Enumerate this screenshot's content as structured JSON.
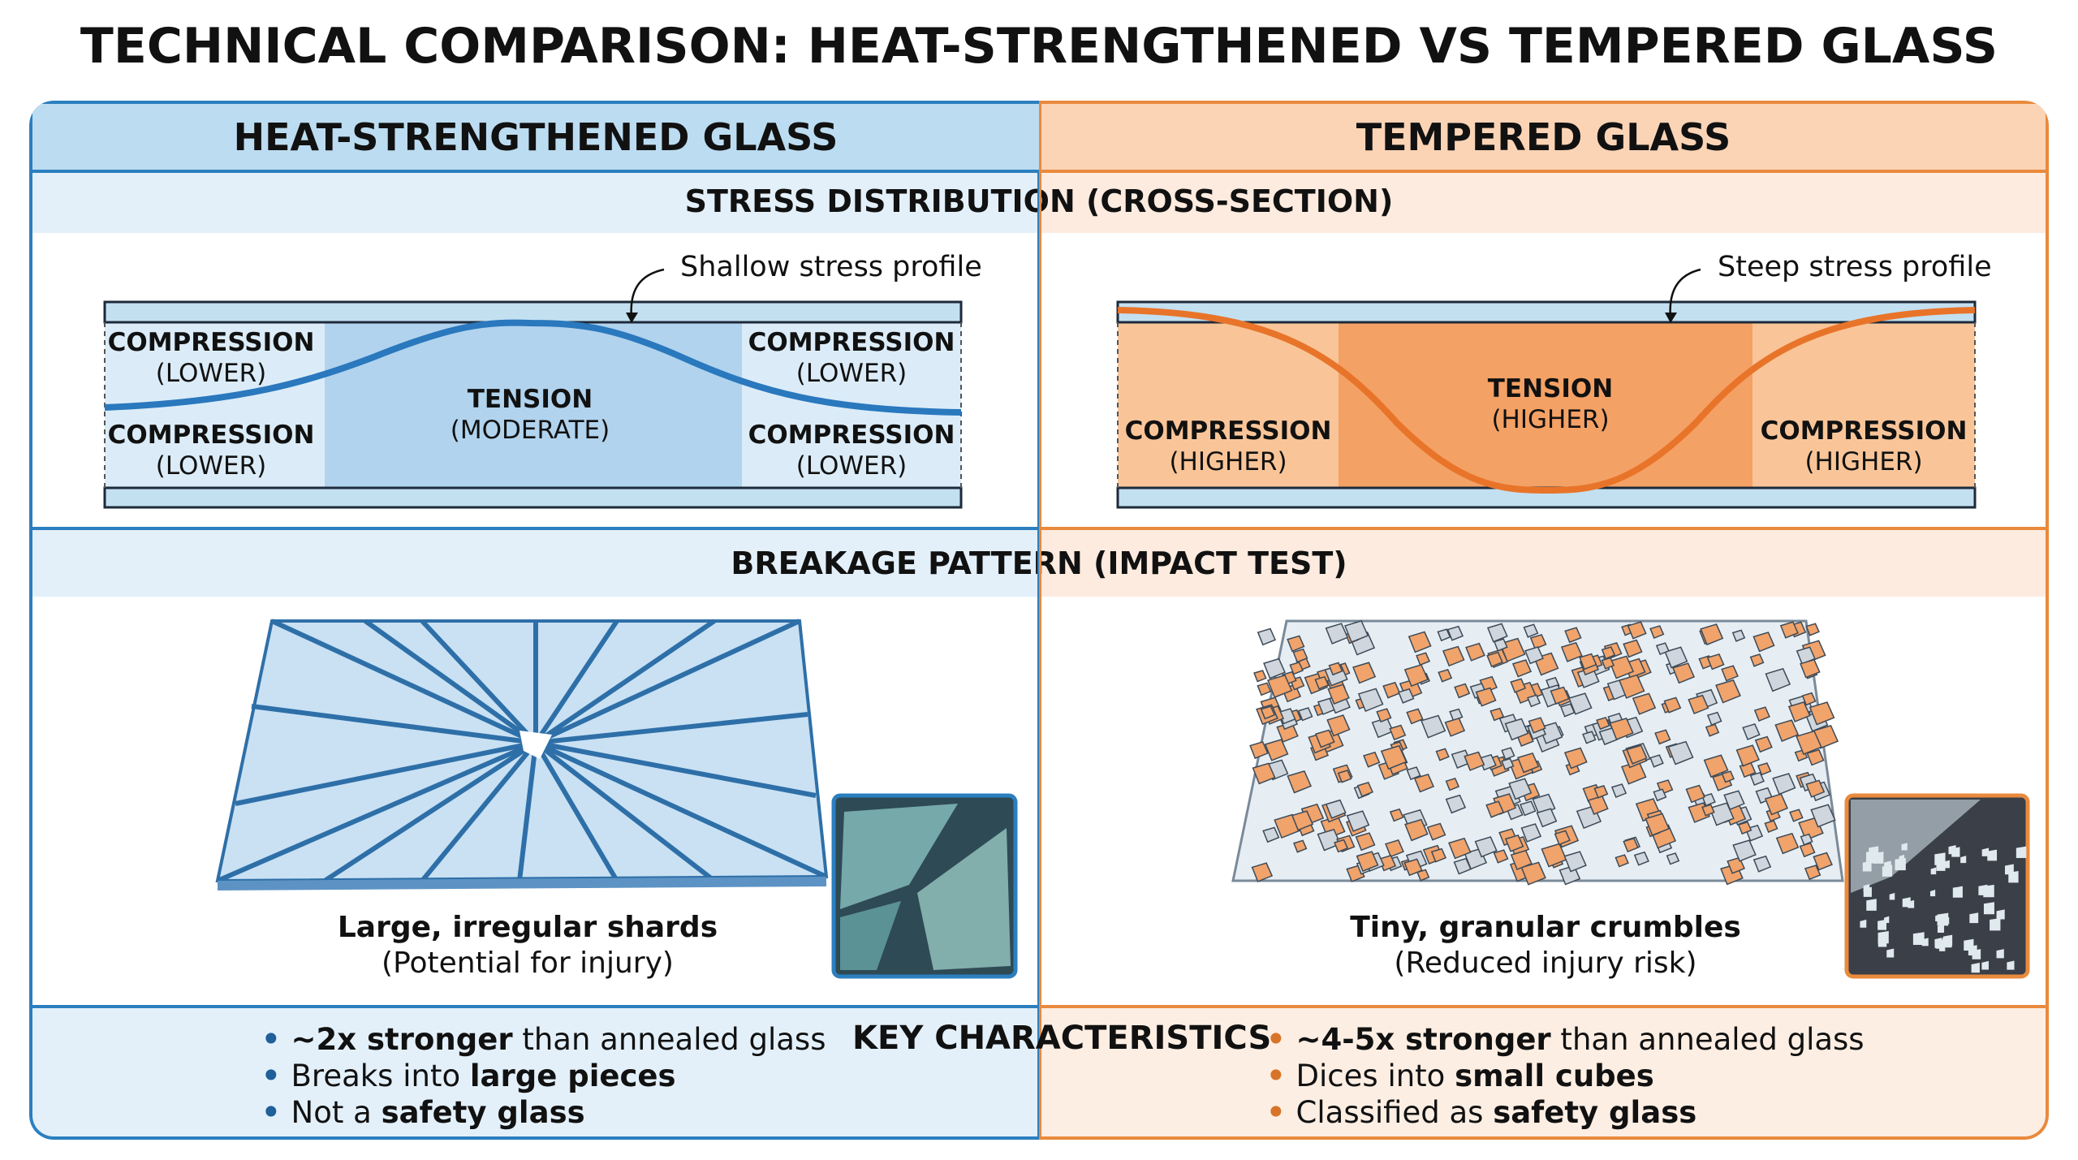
{
  "title": "TECHNICAL COMPARISON: HEAT-STRENGTHENED VS TEMPERED GLASS",
  "colors": {
    "heat_strengthened": "#2b7fbf",
    "tempered": "#e98a3d"
  },
  "columns": [
    {
      "header": "HEAT-STRENGTHENED GLASS",
      "stress": {
        "note": "Shallow stress profile",
        "labels": [
          {
            "title": "COMPRESSION",
            "sub": "(LOWER)"
          },
          {
            "title": "COMPRESSION",
            "sub": "(LOWER)"
          },
          {
            "title": "TENSION",
            "sub": "(MODERATE)"
          },
          {
            "title": "COMPRESSION",
            "sub": "(LOWER)"
          },
          {
            "title": "COMPRESSION",
            "sub": "(LOWER)"
          }
        ]
      },
      "breakage": {
        "caption": "Large, irregular shards",
        "subcaption": "(Potential for injury)",
        "icon": "broken-glass-shards-illustration",
        "photo": "large-shards-photo"
      },
      "key": [
        {
          "bold": "~2x stronger",
          "rest": " than annealed glass",
          "bold_first": true
        },
        {
          "pre": "Breaks into ",
          "bold": "large pieces"
        },
        {
          "pre": "Not a ",
          "bold": "safety glass"
        }
      ]
    },
    {
      "header": "TEMPERED GLASS",
      "stress": {
        "note": "Steep stress profile",
        "labels": [
          {
            "title": "TENSION",
            "sub": "(HIGHER)"
          },
          {
            "title": "COMPRESSION",
            "sub": "(HIGHER)"
          },
          {
            "title": "COMPRESSION",
            "sub": "(HIGHER)"
          }
        ]
      },
      "breakage": {
        "caption": "Tiny, granular crumbles",
        "subcaption": "(Reduced injury risk)",
        "icon": "granular-cubes-illustration",
        "photo": "granular-crumbles-photo"
      },
      "key": [
        {
          "bold": "~4-5x stronger",
          "rest": " than annealed glass",
          "bold_first": true
        },
        {
          "pre": "Dices into ",
          "bold": "small cubes"
        },
        {
          "pre": "Classified as ",
          "bold": "safety glass"
        }
      ]
    }
  ],
  "sections": {
    "stress": "STRESS DISTRIBUTION (CROSS-SECTION)",
    "breakage": "BREAKAGE PATTERN (IMPACT TEST)",
    "key": "KEY CHARACTERISTICS"
  }
}
